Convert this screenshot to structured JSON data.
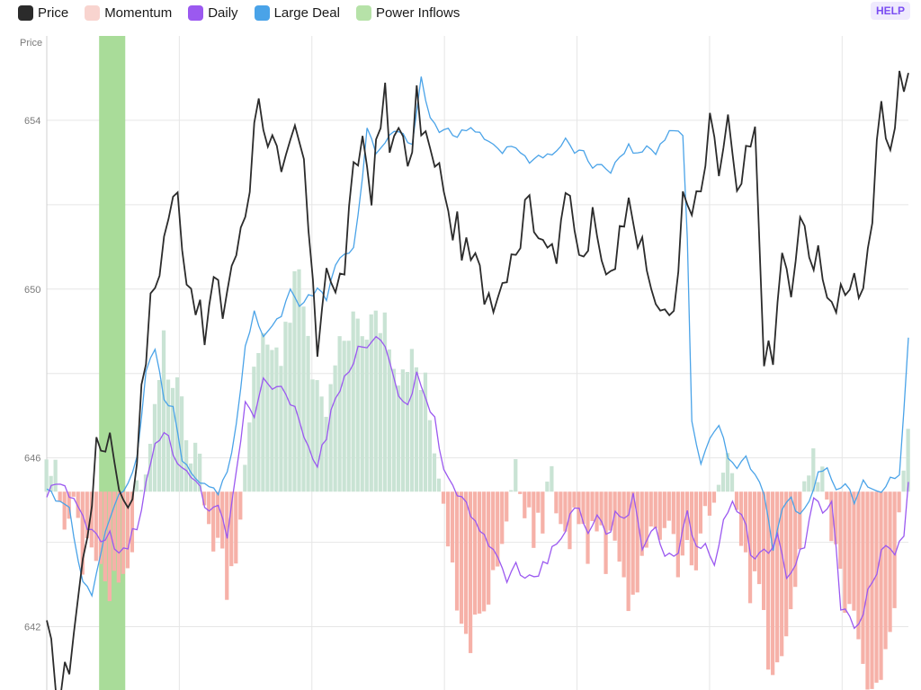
{
  "legend": [
    {
      "label": "Price",
      "color": "#2b2b2b"
    },
    {
      "label": "Momentum",
      "color": "#f8d4cf"
    },
    {
      "label": "Daily",
      "color": "#9b59f0"
    },
    {
      "label": "Large Deal",
      "color": "#4aa3e8"
    },
    {
      "label": "Power Inflows",
      "color": "#b6e2a8"
    }
  ],
  "help_label": "HELP",
  "chart_data": {
    "type": "line",
    "ylabel": "Price",
    "ylim": [
      640.5,
      656
    ],
    "yticks": [
      642,
      646,
      650,
      654
    ],
    "n_points": 192,
    "momentum_baseline": 645.2,
    "colors": {
      "price": "#2b2b2b",
      "daily": "#9b59f0",
      "large_deal": "#4aa3e8",
      "momentum_pos": "#c9e3d4",
      "momentum_neg": "#f6b1a8",
      "power_inflows": "#a9dc99",
      "grid": "#e6e6e6"
    },
    "price_anchors": [
      [
        0,
        641.8
      ],
      [
        3,
        640.4
      ],
      [
        5,
        641.2
      ],
      [
        8,
        643.5
      ],
      [
        10,
        645.2
      ],
      [
        11,
        646.1
      ],
      [
        14,
        646.6
      ],
      [
        16,
        645.6
      ],
      [
        17,
        644.8
      ],
      [
        19,
        645.2
      ],
      [
        21,
        647.4
      ],
      [
        23,
        649.6
      ],
      [
        25,
        650.6
      ],
      [
        27,
        651.8
      ],
      [
        29,
        652.2
      ],
      [
        31,
        650.4
      ],
      [
        33,
        649.8
      ],
      [
        35,
        648.8
      ],
      [
        37,
        650.2
      ],
      [
        39,
        649.5
      ],
      [
        41,
        650.6
      ],
      [
        43,
        651.2
      ],
      [
        45,
        652.4
      ],
      [
        46,
        654.2
      ],
      [
        47,
        654.8
      ],
      [
        48,
        653.6
      ],
      [
        50,
        653.9
      ],
      [
        52,
        652.5
      ],
      [
        53,
        652.8
      ],
      [
        55,
        653.6
      ],
      [
        57,
        653.0
      ],
      [
        59,
        649.8
      ],
      [
        60,
        648.6
      ],
      [
        62,
        650.8
      ],
      [
        64,
        649.8
      ],
      [
        66,
        650.6
      ],
      [
        68,
        652.6
      ],
      [
        70,
        653.6
      ],
      [
        72,
        652.4
      ],
      [
        74,
        653.9
      ],
      [
        75,
        654.6
      ],
      [
        76,
        653.2
      ],
      [
        78,
        654.2
      ],
      [
        80,
        652.6
      ],
      [
        82,
        654.4
      ],
      [
        84,
        653.6
      ],
      [
        86,
        652.8
      ],
      [
        88,
        652.6
      ],
      [
        89,
        651.6
      ],
      [
        91,
        651.4
      ],
      [
        93,
        650.8
      ],
      [
        95,
        650.6
      ],
      [
        97,
        650.0
      ],
      [
        99,
        649.9
      ],
      [
        101,
        650.2
      ],
      [
        103,
        651.0
      ],
      [
        105,
        651.2
      ],
      [
        107,
        652.6
      ],
      [
        109,
        650.8
      ],
      [
        111,
        651.4
      ],
      [
        113,
        651.0
      ],
      [
        115,
        652.4
      ],
      [
        117,
        651.2
      ],
      [
        119,
        650.6
      ],
      [
        121,
        651.6
      ],
      [
        123,
        650.6
      ],
      [
        125,
        650.6
      ],
      [
        127,
        651.2
      ],
      [
        129,
        652.6
      ],
      [
        131,
        651.2
      ],
      [
        133,
        650.4
      ],
      [
        135,
        649.8
      ],
      [
        137,
        649.2
      ],
      [
        139,
        649.6
      ],
      [
        141,
        652.0
      ],
      [
        143,
        651.8
      ],
      [
        145,
        652.2
      ],
      [
        147,
        653.8
      ],
      [
        149,
        652.8
      ],
      [
        151,
        654.0
      ],
      [
        153,
        652.0
      ],
      [
        155,
        653.0
      ],
      [
        157,
        653.6
      ],
      [
        159,
        648.6
      ],
      [
        161,
        648.2
      ],
      [
        163,
        651.0
      ],
      [
        165,
        649.6
      ],
      [
        167,
        651.8
      ],
      [
        169,
        650.6
      ],
      [
        171,
        651.2
      ],
      [
        173,
        649.4
      ],
      [
        175,
        649.8
      ],
      [
        177,
        650.2
      ],
      [
        179,
        650.4
      ],
      [
        181,
        649.6
      ],
      [
        183,
        651.6
      ],
      [
        185,
        654.6
      ],
      [
        187,
        653.2
      ],
      [
        189,
        655.0
      ],
      [
        191,
        654.8
      ]
    ],
    "large_deal_anchors": [
      [
        0,
        645.2
      ],
      [
        5,
        644.8
      ],
      [
        8,
        643.0
      ],
      [
        10,
        642.8
      ],
      [
        12,
        643.8
      ],
      [
        14,
        644.6
      ],
      [
        16,
        645.1
      ],
      [
        18,
        645.4
      ],
      [
        20,
        646.0
      ],
      [
        22,
        648.0
      ],
      [
        24,
        648.6
      ],
      [
        26,
        647.4
      ],
      [
        28,
        647.2
      ],
      [
        30,
        646.0
      ],
      [
        32,
        645.6
      ],
      [
        34,
        645.4
      ],
      [
        36,
        645.4
      ],
      [
        38,
        645.2
      ],
      [
        40,
        645.6
      ],
      [
        42,
        646.8
      ],
      [
        44,
        648.6
      ],
      [
        46,
        649.4
      ],
      [
        48,
        648.8
      ],
      [
        50,
        649.2
      ],
      [
        52,
        649.4
      ],
      [
        54,
        650.0
      ],
      [
        56,
        649.6
      ],
      [
        58,
        649.8
      ],
      [
        60,
        650.0
      ],
      [
        62,
        649.8
      ],
      [
        64,
        650.6
      ],
      [
        66,
        650.8
      ],
      [
        68,
        651.0
      ],
      [
        70,
        652.6
      ],
      [
        71,
        653.8
      ],
      [
        73,
        653.2
      ],
      [
        75,
        653.4
      ],
      [
        77,
        653.8
      ],
      [
        79,
        653.6
      ],
      [
        81,
        653.4
      ],
      [
        83,
        655.0
      ],
      [
        85,
        654.0
      ],
      [
        87,
        653.8
      ],
      [
        89,
        653.8
      ],
      [
        91,
        653.6
      ],
      [
        93,
        653.8
      ],
      [
        95,
        653.8
      ],
      [
        97,
        653.6
      ],
      [
        99,
        653.4
      ],
      [
        101,
        653.2
      ],
      [
        103,
        653.4
      ],
      [
        105,
        653.2
      ],
      [
        107,
        653.0
      ],
      [
        109,
        653.2
      ],
      [
        111,
        653.2
      ],
      [
        113,
        653.2
      ],
      [
        115,
        653.6
      ],
      [
        117,
        653.2
      ],
      [
        119,
        653.3
      ],
      [
        121,
        652.8
      ],
      [
        123,
        653.0
      ],
      [
        125,
        652.8
      ],
      [
        127,
        653.2
      ],
      [
        129,
        653.4
      ],
      [
        131,
        653.2
      ],
      [
        133,
        653.4
      ],
      [
        135,
        653.2
      ],
      [
        137,
        653.6
      ],
      [
        139,
        653.8
      ],
      [
        141,
        653.6
      ],
      [
        142,
        651.2
      ],
      [
        143,
        646.8
      ],
      [
        145,
        645.8
      ],
      [
        147,
        646.4
      ],
      [
        149,
        646.8
      ],
      [
        151,
        646.0
      ],
      [
        153,
        645.8
      ],
      [
        155,
        646.0
      ],
      [
        157,
        645.6
      ],
      [
        159,
        645.2
      ],
      [
        161,
        643.8
      ],
      [
        163,
        644.8
      ],
      [
        165,
        645.0
      ],
      [
        167,
        644.6
      ],
      [
        169,
        645.0
      ],
      [
        171,
        645.6
      ],
      [
        173,
        645.8
      ],
      [
        175,
        645.2
      ],
      [
        177,
        645.4
      ],
      [
        179,
        645.0
      ],
      [
        181,
        645.4
      ],
      [
        183,
        645.2
      ],
      [
        185,
        645.2
      ],
      [
        187,
        645.6
      ],
      [
        189,
        645.6
      ],
      [
        191,
        648.8
      ]
    ],
    "daily_anchors": [
      [
        0,
        645.2
      ],
      [
        3,
        645.4
      ],
      [
        5,
        645.0
      ],
      [
        8,
        644.6
      ],
      [
        10,
        644.2
      ],
      [
        12,
        644.0
      ],
      [
        14,
        644.2
      ],
      [
        16,
        643.6
      ],
      [
        18,
        644.0
      ],
      [
        20,
        644.4
      ],
      [
        22,
        645.4
      ],
      [
        24,
        646.2
      ],
      [
        26,
        646.6
      ],
      [
        28,
        646.2
      ],
      [
        30,
        645.8
      ],
      [
        32,
        645.4
      ],
      [
        34,
        645.2
      ],
      [
        36,
        644.6
      ],
      [
        38,
        644.8
      ],
      [
        40,
        644.2
      ],
      [
        42,
        645.6
      ],
      [
        44,
        647.4
      ],
      [
        46,
        647.0
      ],
      [
        48,
        648.0
      ],
      [
        50,
        647.8
      ],
      [
        52,
        647.6
      ],
      [
        54,
        647.2
      ],
      [
        56,
        647.0
      ],
      [
        58,
        646.2
      ],
      [
        60,
        645.8
      ],
      [
        62,
        646.6
      ],
      [
        64,
        647.4
      ],
      [
        66,
        647.8
      ],
      [
        68,
        648.4
      ],
      [
        70,
        648.6
      ],
      [
        72,
        648.8
      ],
      [
        74,
        648.8
      ],
      [
        76,
        648.4
      ],
      [
        78,
        647.6
      ],
      [
        80,
        647.2
      ],
      [
        82,
        648.0
      ],
      [
        84,
        647.4
      ],
      [
        86,
        646.8
      ],
      [
        88,
        645.8
      ],
      [
        90,
        645.2
      ],
      [
        92,
        645.0
      ],
      [
        94,
        644.6
      ],
      [
        96,
        644.2
      ],
      [
        98,
        644.0
      ],
      [
        100,
        643.6
      ],
      [
        102,
        643.2
      ],
      [
        104,
        643.4
      ],
      [
        106,
        643.0
      ],
      [
        108,
        643.2
      ],
      [
        110,
        643.4
      ],
      [
        112,
        643.8
      ],
      [
        114,
        644.2
      ],
      [
        116,
        644.6
      ],
      [
        118,
        644.8
      ],
      [
        120,
        644.2
      ],
      [
        122,
        644.6
      ],
      [
        124,
        644.2
      ],
      [
        126,
        644.6
      ],
      [
        128,
        644.4
      ],
      [
        130,
        645.0
      ],
      [
        132,
        643.8
      ],
      [
        134,
        644.4
      ],
      [
        136,
        644.0
      ],
      [
        138,
        643.6
      ],
      [
        140,
        643.8
      ],
      [
        142,
        644.6
      ],
      [
        144,
        644.0
      ],
      [
        146,
        643.8
      ],
      [
        148,
        643.6
      ],
      [
        150,
        644.4
      ],
      [
        152,
        645.0
      ],
      [
        154,
        644.8
      ],
      [
        156,
        643.8
      ],
      [
        158,
        643.6
      ],
      [
        160,
        643.8
      ],
      [
        162,
        644.2
      ],
      [
        164,
        643.0
      ],
      [
        166,
        643.6
      ],
      [
        168,
        644.0
      ],
      [
        170,
        645.0
      ],
      [
        172,
        644.6
      ],
      [
        174,
        645.0
      ],
      [
        176,
        642.4
      ],
      [
        178,
        642.2
      ],
      [
        180,
        642.0
      ],
      [
        182,
        642.8
      ],
      [
        184,
        643.4
      ],
      [
        186,
        644.0
      ],
      [
        188,
        643.6
      ],
      [
        190,
        644.2
      ],
      [
        191,
        645.6
      ]
    ],
    "momentum_anchors": [
      [
        0,
        646.2
      ],
      [
        2,
        645.6
      ],
      [
        4,
        644.4
      ],
      [
        6,
        644.8
      ],
      [
        8,
        643.6
      ],
      [
        10,
        644.2
      ],
      [
        12,
        643.4
      ],
      [
        14,
        642.8
      ],
      [
        16,
        643.2
      ],
      [
        18,
        643.0
      ],
      [
        20,
        645.2
      ],
      [
        22,
        645.8
      ],
      [
        24,
        647.6
      ],
      [
        26,
        648.6
      ],
      [
        28,
        647.8
      ],
      [
        30,
        647.4
      ],
      [
        32,
        646.2
      ],
      [
        34,
        645.8
      ],
      [
        36,
        644.4
      ],
      [
        38,
        644.0
      ],
      [
        40,
        643.0
      ],
      [
        42,
        643.6
      ],
      [
        44,
        645.6
      ],
      [
        46,
        648.2
      ],
      [
        48,
        649.0
      ],
      [
        50,
        648.2
      ],
      [
        52,
        648.4
      ],
      [
        54,
        649.6
      ],
      [
        56,
        650.6
      ],
      [
        58,
        648.6
      ],
      [
        60,
        647.8
      ],
      [
        62,
        647.0
      ],
      [
        64,
        648.2
      ],
      [
        66,
        649.0
      ],
      [
        68,
        649.4
      ],
      [
        70,
        648.8
      ],
      [
        72,
        649.4
      ],
      [
        74,
        649.4
      ],
      [
        76,
        648.6
      ],
      [
        78,
        647.6
      ],
      [
        80,
        648.4
      ],
      [
        82,
        648.2
      ],
      [
        84,
        647.6
      ],
      [
        86,
        646.4
      ],
      [
        88,
        644.6
      ],
      [
        90,
        643.2
      ],
      [
        92,
        642.0
      ],
      [
        94,
        641.8
      ],
      [
        96,
        642.2
      ],
      [
        98,
        642.4
      ],
      [
        100,
        643.6
      ],
      [
        102,
        644.4
      ],
      [
        104,
        645.8
      ],
      [
        106,
        645.0
      ],
      [
        108,
        644.2
      ],
      [
        110,
        644.6
      ],
      [
        112,
        645.8
      ],
      [
        114,
        644.4
      ],
      [
        116,
        644.2
      ],
      [
        118,
        644.8
      ],
      [
        120,
        643.8
      ],
      [
        122,
        644.6
      ],
      [
        124,
        643.6
      ],
      [
        126,
        644.2
      ],
      [
        128,
        643.2
      ],
      [
        130,
        642.4
      ],
      [
        132,
        643.8
      ],
      [
        134,
        644.4
      ],
      [
        136,
        643.8
      ],
      [
        138,
        644.4
      ],
      [
        140,
        643.2
      ],
      [
        142,
        644.4
      ],
      [
        144,
        643.4
      ],
      [
        146,
        644.6
      ],
      [
        148,
        645.2
      ],
      [
        150,
        646.0
      ],
      [
        152,
        645.4
      ],
      [
        154,
        644.0
      ],
      [
        156,
        643.0
      ],
      [
        158,
        642.8
      ],
      [
        160,
        641.4
      ],
      [
        162,
        641.2
      ],
      [
        164,
        642.2
      ],
      [
        166,
        643.0
      ],
      [
        168,
        645.2
      ],
      [
        170,
        645.8
      ],
      [
        172,
        645.4
      ],
      [
        174,
        644.2
      ],
      [
        176,
        643.0
      ],
      [
        178,
        642.2
      ],
      [
        180,
        641.8
      ],
      [
        182,
        640.8
      ],
      [
        184,
        640.6
      ],
      [
        186,
        641.6
      ],
      [
        188,
        642.8
      ],
      [
        190,
        645.8
      ],
      [
        191,
        646.6
      ]
    ],
    "power_inflows_band": [
      12,
      17
    ]
  }
}
